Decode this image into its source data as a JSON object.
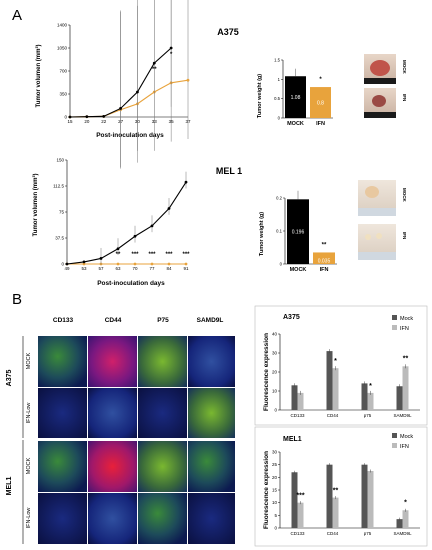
{
  "panels": {
    "a": "A",
    "b": "B"
  },
  "a375_growth": {
    "title": "A375",
    "ylabel": "Tumor volumen (mm³)",
    "xlabel": "Post-inoculation days",
    "x": [
      15,
      20,
      22,
      27,
      30,
      33,
      35,
      37
    ],
    "yticks": [
      0,
      350,
      700,
      1050,
      1400
    ],
    "mock": [
      0,
      5,
      10,
      130,
      380,
      820,
      1050,
      null
    ],
    "ifn": [
      0,
      5,
      10,
      110,
      200,
      380,
      520,
      560
    ],
    "sig": [
      {
        "x": 33,
        "text": "**"
      },
      {
        "x": 35,
        "text": "*"
      }
    ],
    "colors": {
      "mock": "#000000",
      "ifn": "#e8a33c"
    }
  },
  "a375_weight": {
    "ylabel": "Tumor weight (g)",
    "yticks": [
      0,
      0.5,
      1,
      1.5
    ],
    "categories": [
      "MOCK",
      "IFN"
    ],
    "values": [
      1.08,
      0.8
    ],
    "value_labels": [
      "1.08",
      "0.8"
    ],
    "sig": "*",
    "colors": {
      "mock": "#000000",
      "ifn": "#e8a33c"
    }
  },
  "a375_photo_labels": {
    "mock": "MOCK",
    "ifn": "IFN"
  },
  "mel1_growth": {
    "title": "MEL 1",
    "ylabel": "Tumor volumen (mm³)",
    "xlabel": "Post-inoculation days",
    "x": [
      49,
      53,
      57,
      63,
      70,
      77,
      84,
      91
    ],
    "yticks": [
      0,
      37.5,
      75,
      112.5,
      150
    ],
    "mock": [
      0,
      3,
      8,
      22,
      40,
      55,
      80,
      118
    ],
    "ifn": [
      0,
      0,
      0,
      0,
      0,
      0,
      0,
      0
    ],
    "sig": [
      {
        "x": 63,
        "text": "**"
      },
      {
        "x": 70,
        "text": "***"
      },
      {
        "x": 77,
        "text": "***"
      },
      {
        "x": 84,
        "text": "***"
      },
      {
        "x": 91,
        "text": "***"
      }
    ],
    "colors": {
      "mock": "#000000",
      "ifn": "#e8a33c"
    }
  },
  "mel1_weight": {
    "ylabel": "Tumor weight (g)",
    "yticks": [
      0,
      0.1,
      0.2
    ],
    "categories": [
      "MOCK",
      "IFN"
    ],
    "values": [
      0.196,
      0.035
    ],
    "value_labels": [
      "0.196",
      "0.035"
    ],
    "sig": "**",
    "colors": {
      "mock": "#000000",
      "ifn": "#e8a33c"
    }
  },
  "mel1_photo_labels": {
    "mock": "MOCK",
    "ifn": "IFN"
  },
  "micro": {
    "columns": [
      "CD133",
      "CD44",
      "P75",
      "SAMD9L"
    ],
    "groups": [
      "A375",
      "MEL1"
    ],
    "rows": [
      "MOCK",
      "IFN-Low",
      "MOCK",
      "IFN-Low"
    ]
  },
  "fluor_a375": {
    "title": "A375",
    "ylabel": "Fluorescence expression",
    "categories": [
      "CD133",
      "CD44",
      "p75",
      "SAMD9L"
    ],
    "yticks": [
      0,
      10,
      20,
      30,
      40
    ],
    "series": [
      {
        "name": "Mock",
        "values": [
          13,
          31,
          14,
          12.5
        ]
      },
      {
        "name": "IFN",
        "values": [
          9,
          22,
          9,
          23
        ]
      }
    ],
    "sig": [
      "",
      "*",
      "*",
      "**"
    ],
    "colors": {
      "mock": "#555555",
      "ifn": "#bbbbbb"
    }
  },
  "fluor_mel1": {
    "title": "MEL1",
    "ylabel": "Fluorescence expression",
    "categories": [
      "CD133",
      "CD44",
      "p75",
      "SAMD9L"
    ],
    "yticks": [
      0,
      5,
      10,
      15,
      20,
      25,
      30
    ],
    "series": [
      {
        "name": "Mock",
        "values": [
          22,
          25,
          25,
          3.5
        ]
      },
      {
        "name": "IFN",
        "values": [
          10,
          12,
          22.5,
          7
        ]
      }
    ],
    "sig": [
      "***",
      "**",
      "",
      "*"
    ],
    "colors": {
      "mock": "#555555",
      "ifn": "#bbbbbb"
    }
  },
  "chart_data": [
    {
      "type": "line",
      "title": "A375",
      "xlabel": "Post-inoculation days",
      "ylabel": "Tumor volumen (mm³)",
      "x": [
        15,
        20,
        22,
        27,
        30,
        33,
        35,
        37
      ],
      "ylim": [
        0,
        1400
      ],
      "series": [
        {
          "values": [
            0,
            5,
            10,
            130,
            380,
            820,
            1050,
            null
          ]
        },
        {
          "values": [
            0,
            5,
            10,
            110,
            200,
            380,
            520,
            560
          ]
        }
      ]
    },
    {
      "type": "bar",
      "ylabel": "Tumor weight (g)",
      "categories": [
        "MOCK",
        "IFN"
      ],
      "values": [
        1.08,
        0.8
      ],
      "ylim": [
        0,
        1.5
      ]
    },
    {
      "type": "line",
      "title": "MEL 1",
      "xlabel": "Post-inoculation days",
      "ylabel": "Tumor volumen (mm³)",
      "x": [
        49,
        53,
        57,
        63,
        70,
        77,
        84,
        91
      ],
      "ylim": [
        0,
        150
      ],
      "series": [
        {
          "values": [
            0,
            3,
            8,
            22,
            40,
            55,
            80,
            118
          ]
        },
        {
          "values": [
            0,
            0,
            0,
            0,
            0,
            0,
            0,
            0
          ]
        }
      ]
    },
    {
      "type": "bar",
      "ylabel": "Tumor weight (g)",
      "categories": [
        "MOCK",
        "IFN"
      ],
      "values": [
        0.196,
        0.035
      ],
      "ylim": [
        0,
        0.2
      ]
    },
    {
      "type": "bar",
      "title": "A375",
      "ylabel": "Fluorescence expression",
      "categories": [
        "CD133",
        "CD44",
        "p75",
        "SAMD9L"
      ],
      "ylim": [
        0,
        40
      ],
      "series": [
        {
          "name": "Mock",
          "values": [
            13,
            31,
            14,
            12.5
          ]
        },
        {
          "name": "IFN",
          "values": [
            9,
            22,
            9,
            23
          ]
        }
      ]
    },
    {
      "type": "bar",
      "title": "MEL1",
      "ylabel": "Fluorescence expression",
      "categories": [
        "CD133",
        "CD44",
        "p75",
        "SAMD9L"
      ],
      "ylim": [
        0,
        30
      ],
      "series": [
        {
          "name": "Mock",
          "values": [
            22,
            25,
            25,
            3.5
          ]
        },
        {
          "name": "IFN",
          "values": [
            10,
            12,
            22.5,
            7
          ]
        }
      ]
    }
  ]
}
